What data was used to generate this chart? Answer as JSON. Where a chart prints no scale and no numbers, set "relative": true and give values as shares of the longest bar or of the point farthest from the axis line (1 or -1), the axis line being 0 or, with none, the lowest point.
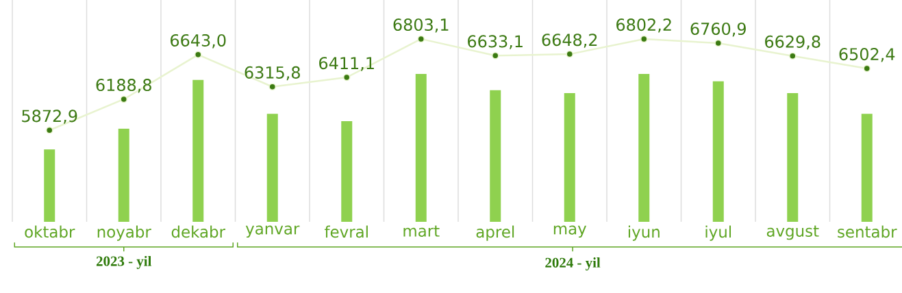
{
  "chart_data": [
    {
      "type": "bar",
      "relative": true,
      "categories": [
        "oktabr",
        "noyabr",
        "dekabr",
        "yanvar",
        "fevral",
        "mart",
        "aprel",
        "may",
        "iyun",
        "iyul",
        "avgust",
        "sentabr"
      ],
      "color": "#8fd14f",
      "values": [
        0.49,
        0.63,
        0.96,
        0.73,
        0.68,
        1.0,
        0.89,
        0.87,
        1.0,
        0.95,
        0.87,
        0.73
      ],
      "annotations": [
        "2023 - yil",
        "2024 - yil"
      ]
    },
    {
      "type": "line",
      "categories": [
        null,
        null,
        null,
        null,
        null,
        null,
        null,
        null,
        null,
        null,
        null,
        null
      ],
      "marker": "circle",
      "ylim": [
        4940,
        7200
      ],
      "color": "#e8f3cf",
      "values": [
        5872.9,
        6188.8,
        6643.0,
        6315.8,
        6411.1,
        6803.1,
        6633.1,
        6648.2,
        6802.2,
        6760.9,
        6629.8,
        6502.4
      ],
      "value_labels": [
        "5872,9",
        "6188,8",
        "6643,0",
        "6315,8",
        "6411,1",
        "6803,1",
        "6633,1",
        "6648,2",
        "6802,2",
        "6760,9",
        "6629,8",
        "6502,4"
      ]
    }
  ]
}
